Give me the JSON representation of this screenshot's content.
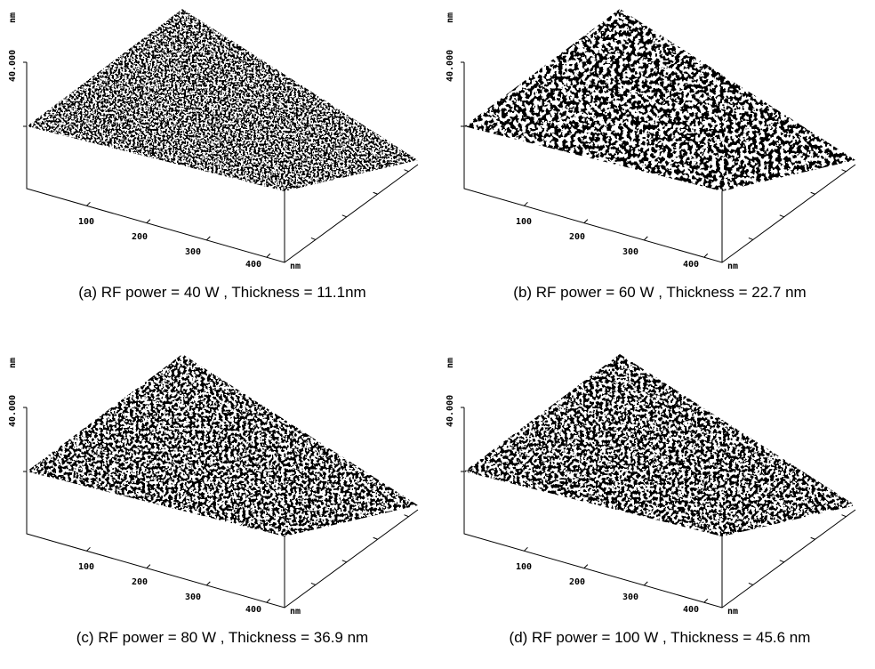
{
  "panels": [
    {
      "caption": "(a) RF power = 40 W , Thickness = 11.1nm",
      "z_label": "40.000",
      "z_unit": "nm",
      "x_ticks": [
        "100",
        "200",
        "300",
        "400"
      ],
      "x_unit": "nm"
    },
    {
      "caption": "(b) RF power = 60 W , Thickness = 22.7 nm",
      "z_label": "40.000",
      "z_unit": "nm",
      "x_ticks": [
        "100",
        "200",
        "300",
        "400"
      ],
      "x_unit": "nm"
    },
    {
      "caption": "(c) RF power = 80 W , Thickness = 36.9 nm",
      "z_label": "40.000",
      "z_unit": "nm",
      "x_ticks": [
        "100",
        "200",
        "300",
        "400"
      ],
      "x_unit": "nm"
    },
    {
      "caption": "(d) RF power = 100 W , Thickness = 45.6 nm",
      "z_label": "40.000",
      "z_unit": "nm",
      "x_ticks": [
        "100",
        "200",
        "300",
        "400"
      ],
      "x_unit": "nm"
    }
  ]
}
